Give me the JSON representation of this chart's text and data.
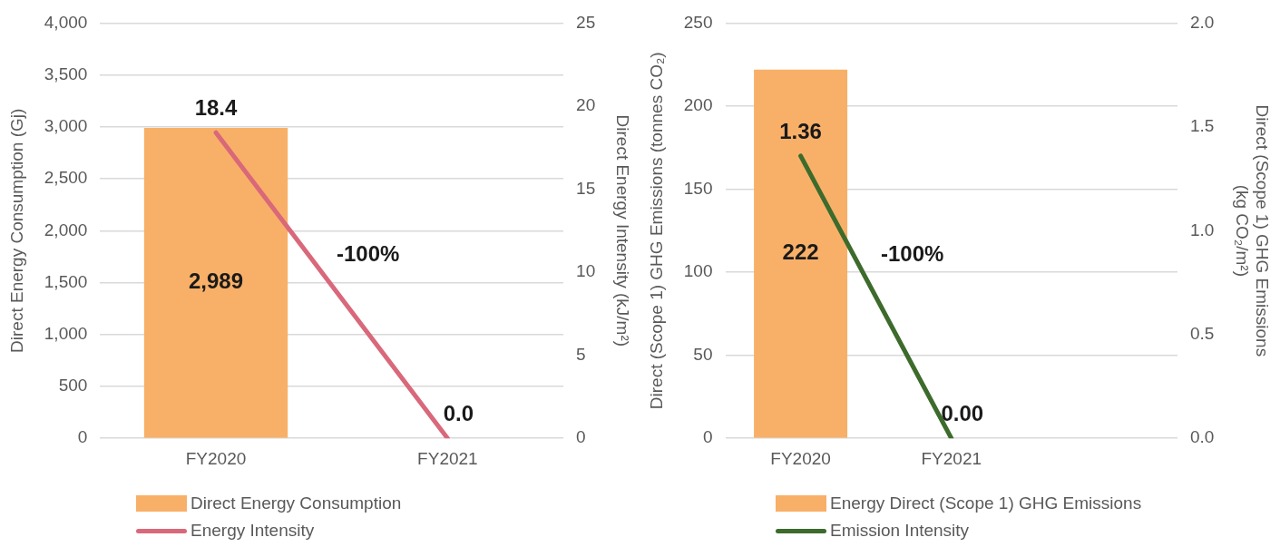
{
  "chart_data": [
    {
      "type": "bar",
      "categories": [
        "FY2020",
        "FY2021"
      ],
      "series": [
        {
          "name": "Direct Energy Consumption",
          "color": "#f8b068",
          "values": [
            2989,
            0
          ],
          "value_labels": [
            "2,989",
            null
          ]
        },
        {
          "name": "Energy Intensity",
          "type": "line",
          "axis": "y2",
          "color": "#d9687a",
          "values": [
            18.4,
            0.0
          ],
          "value_labels": [
            "18.4",
            "0.0"
          ]
        }
      ],
      "ylabel": "Direct Energy Consumption (Gj)",
      "y2label": "Direct Energy Intensity (kJ/m²)",
      "ylim": [
        0,
        4000
      ],
      "yticks": [
        0,
        500,
        {
          "value": 1000,
          "label": "1,000"
        },
        {
          "value": 1500,
          "label": "1,500"
        },
        {
          "value": 2000,
          "label": "2,000"
        },
        {
          "value": 2500,
          "label": "2,500"
        },
        {
          "value": 3000,
          "label": "3,000"
        },
        {
          "value": 3500,
          "label": "3,500"
        },
        {
          "value": 4000,
          "label": "4,000"
        }
      ],
      "y2lim": [
        0,
        25
      ],
      "y2ticks": [
        0,
        5,
        10,
        15,
        20,
        25
      ],
      "grid": "y",
      "legend": "bottom",
      "marker": "none",
      "annotations": [
        "-100%"
      ]
    },
    {
      "type": "bar",
      "categories": [
        "FY2020",
        "FY2021",
        null
      ],
      "series": [
        {
          "name": "Energy Direct (Scope 1) GHG Emissions",
          "color": "#f8b068",
          "values": [
            222,
            0,
            null
          ],
          "value_labels": [
            "222",
            null,
            null
          ]
        },
        {
          "name": "Emission Intensity",
          "type": "line",
          "axis": "y2",
          "color": "#3d6b2c",
          "values": [
            1.36,
            0.0,
            null
          ],
          "value_labels": [
            "1.36",
            "0.00",
            null
          ]
        }
      ],
      "ylabel": "Direct (Scope 1) GHG Emissions (tonnes CO₂)",
      "y2label": "Direct (Scope 1) GHG Emissions (kg CO₂/m²)",
      "ylim": [
        0,
        250
      ],
      "yticks": [
        0,
        50,
        100,
        150,
        200,
        250
      ],
      "y2lim": [
        0,
        2
      ],
      "y2ticks": [
        {
          "value": 0,
          "label": "0.0"
        },
        {
          "value": 0.5,
          "label": "0.5"
        },
        {
          "value": 1,
          "label": "1.0"
        },
        {
          "value": 1.5,
          "label": "1.5"
        },
        {
          "value": 2,
          "label": "2.0"
        }
      ],
      "grid": "y",
      "legend": "bottom",
      "marker": "none",
      "annotations": [
        "-100%"
      ]
    }
  ]
}
